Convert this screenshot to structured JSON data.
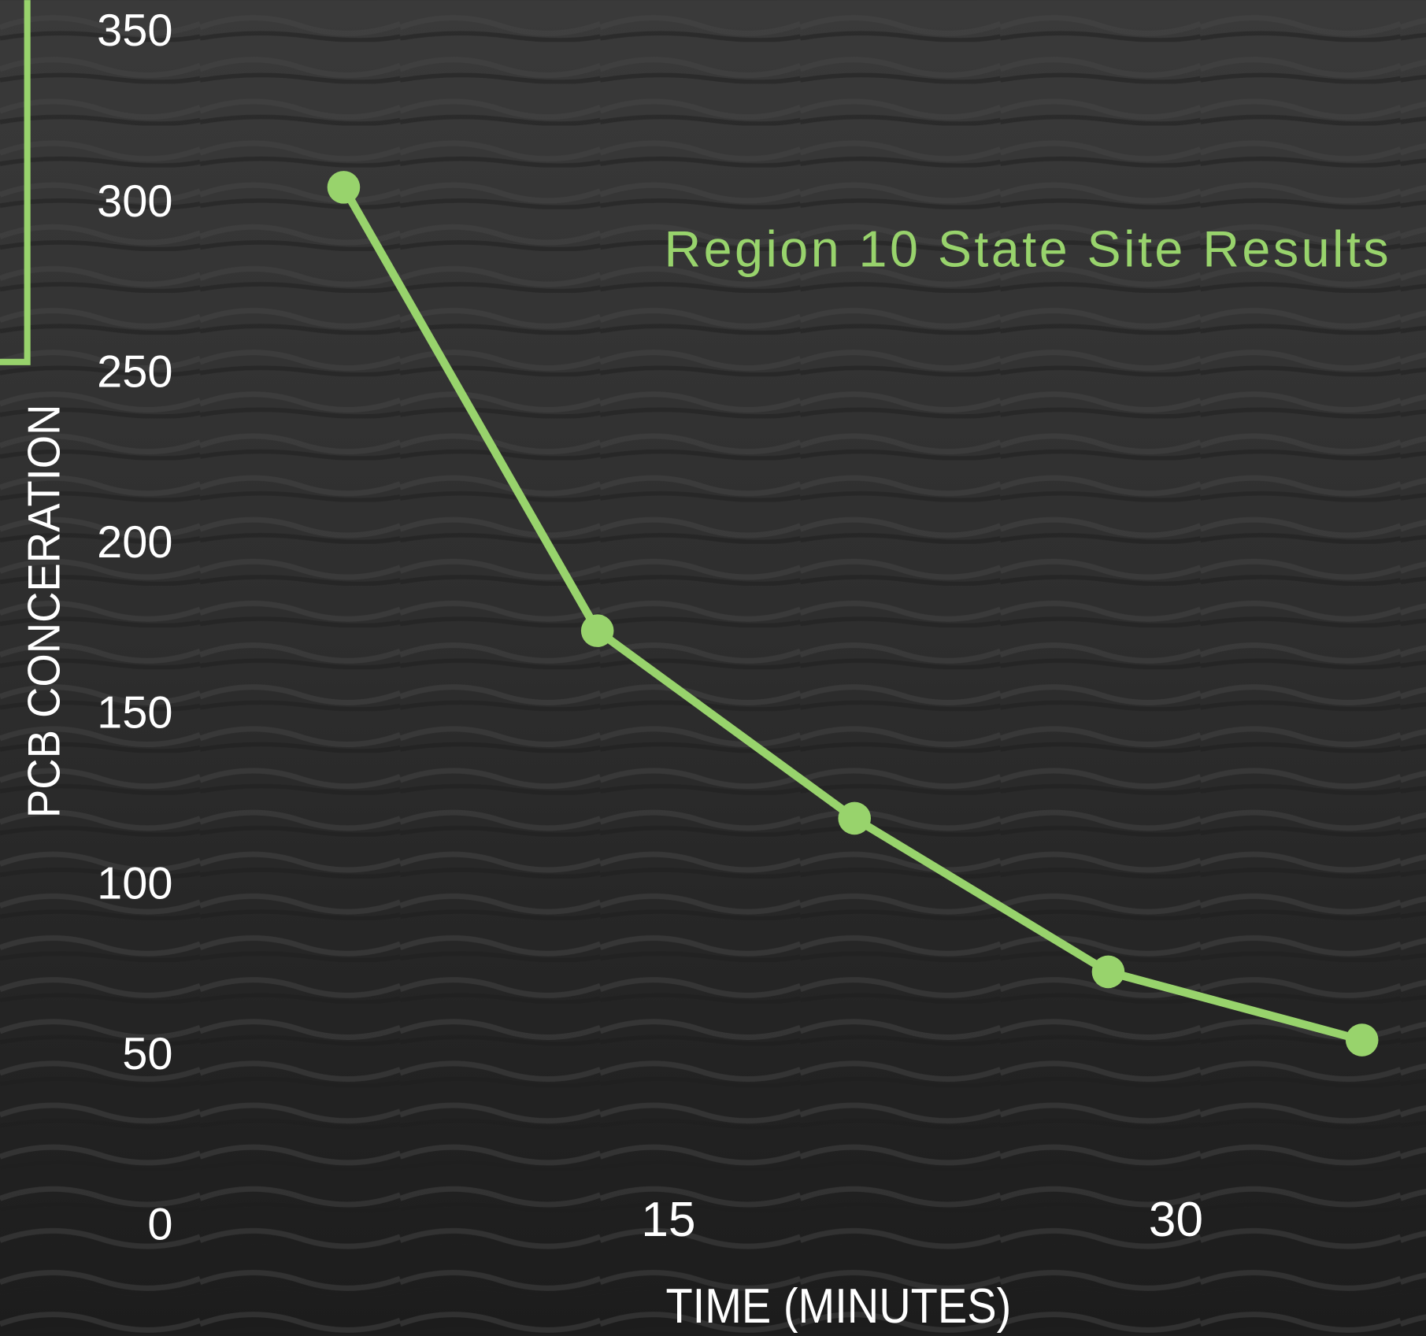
{
  "chart_data": {
    "type": "line",
    "title": "Region 10 State Site Results",
    "x_label": "TIME (MINUTES)",
    "y_label": "PCB CONCERATION",
    "x": [
      5.4,
      12.9,
      20.5,
      28,
      35.5
    ],
    "series": [
      {
        "name": "Region 10 State Site Results",
        "color": "#98d36c",
        "values": [
          305,
          175,
          120,
          75,
          55
        ]
      }
    ],
    "xlim": [
      0,
      37
    ],
    "xticks": [
      15,
      30
    ],
    "ylim": [
      0,
      350
    ],
    "yticks": [
      0,
      50,
      100,
      150,
      200,
      250,
      300,
      350
    ],
    "grid": false
  }
}
